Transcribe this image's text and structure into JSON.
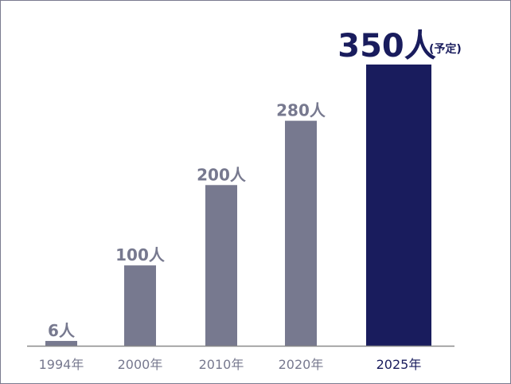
{
  "colors": {
    "past_bar": "#77798f",
    "highlight_bar": "#191c5d",
    "axis_line": "#8a8a8a",
    "past_text": "#77798f",
    "highlight_text": "#191c5d",
    "frame_border": "#7a7b8f"
  },
  "chart_data": {
    "type": "bar",
    "title": "",
    "xlabel": "",
    "ylabel": "",
    "ylim": [
      0,
      350
    ],
    "grid": false,
    "categories": [
      "1994年",
      "2000年",
      "2010年",
      "2020年",
      "2025年"
    ],
    "values": [
      6,
      100,
      200,
      280,
      350
    ],
    "value_labels": [
      "6人",
      "100人",
      "200人",
      "280人",
      "350人"
    ],
    "value_suffix_note": [
      "",
      "",
      "",
      "",
      "(予定)"
    ],
    "highlight_index": 4
  }
}
